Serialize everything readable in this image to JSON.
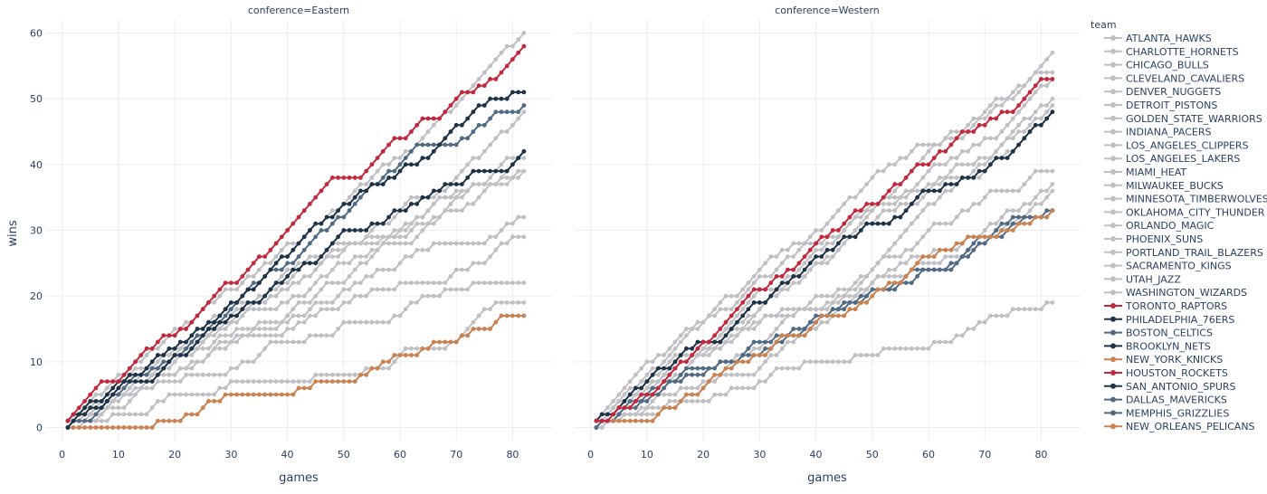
{
  "colors": {
    "gray": "#c0c0c4",
    "red": "#c2283e",
    "navy": "#1f3347",
    "slate": "#516b84",
    "orange": "#c98252",
    "grid": "#ebedf0",
    "text": "#2a3f5f"
  },
  "chart_data": {
    "type": "line",
    "xlabel": "games",
    "ylabel": "wins",
    "xlim": [
      -3,
      87
    ],
    "ylim": [
      -2,
      62
    ],
    "xticks": [
      0,
      10,
      20,
      30,
      40,
      50,
      60,
      70,
      80
    ],
    "yticks": [
      0,
      10,
      20,
      30,
      40,
      50,
      60
    ],
    "grid": true,
    "legend_title": "team",
    "legend_position": "right",
    "facets": [
      {
        "label": "conference=Eastern",
        "series": [
          {
            "name": "MILWAUKEE_BUCKS",
            "color": "gray",
            "final": [
              82,
              60
            ]
          },
          {
            "name": "INDIANA_PACERS",
            "color": "gray",
            "final": [
              82,
              48
            ]
          },
          {
            "name": "ORLANDO_MAGIC",
            "color": "gray",
            "final": [
              82,
              42
            ]
          },
          {
            "name": "DETROIT_PISTONS",
            "color": "gray",
            "final": [
              82,
              41
            ]
          },
          {
            "name": "MIAMI_HEAT",
            "color": "gray",
            "final": [
              82,
              39
            ]
          },
          {
            "name": "CHARLOTTE_HORNETS",
            "color": "gray",
            "final": [
              82,
              39
            ]
          },
          {
            "name": "WASHINGTON_WIZARDS",
            "color": "gray",
            "final": [
              82,
              32
            ]
          },
          {
            "name": "ATLANTA_HAWKS",
            "color": "gray",
            "final": [
              82,
              29
            ]
          },
          {
            "name": "CHICAGO_BULLS",
            "color": "gray",
            "final": [
              82,
              22
            ]
          },
          {
            "name": "CLEVELAND_CAVALIERS",
            "color": "gray",
            "final": [
              82,
              19
            ]
          },
          {
            "name": "BOSTON_CELTICS",
            "color": "slate",
            "final": [
              82,
              49
            ]
          },
          {
            "name": "PHILADELPHIA_76ERS",
            "color": "navy",
            "final": [
              82,
              51
            ]
          },
          {
            "name": "BROOKLYN_NETS",
            "color": "navy",
            "final": [
              82,
              42
            ]
          },
          {
            "name": "NEW_YORK_KNICKS",
            "color": "orange",
            "final": [
              82,
              17
            ]
          },
          {
            "name": "TORONTO_RAPTORS",
            "color": "red",
            "final": [
              82,
              58
            ]
          }
        ]
      },
      {
        "label": "conference=Western",
        "series": [
          {
            "name": "GOLDEN_STATE_WARRIORS",
            "color": "gray",
            "final": [
              82,
              57
            ]
          },
          {
            "name": "DENVER_NUGGETS",
            "color": "gray",
            "final": [
              82,
              54
            ]
          },
          {
            "name": "PORTLAND_TRAIL_BLAZERS",
            "color": "gray",
            "final": [
              82,
              53
            ]
          },
          {
            "name": "UTAH_JAZZ",
            "color": "gray",
            "final": [
              82,
              50
            ]
          },
          {
            "name": "OKLAHOMA_CITY_THUNDER",
            "color": "gray",
            "final": [
              82,
              49
            ]
          },
          {
            "name": "LOS_ANGELES_CLIPPERS",
            "color": "gray",
            "final": [
              82,
              48
            ]
          },
          {
            "name": "SACRAMENTO_KINGS",
            "color": "gray",
            "final": [
              82,
              39
            ]
          },
          {
            "name": "LOS_ANGELES_LAKERS",
            "color": "gray",
            "final": [
              82,
              37
            ]
          },
          {
            "name": "MINNESOTA_TIMBERWOLVES",
            "color": "gray",
            "final": [
              82,
              36
            ]
          },
          {
            "name": "PHOENIX_SUNS",
            "color": "gray",
            "final": [
              82,
              19
            ]
          },
          {
            "name": "DALLAS_MAVERICKS",
            "color": "slate",
            "final": [
              82,
              33
            ]
          },
          {
            "name": "MEMPHIS_GRIZZLIES",
            "color": "slate",
            "final": [
              82,
              33
            ]
          },
          {
            "name": "SAN_ANTONIO_SPURS",
            "color": "navy",
            "final": [
              82,
              48
            ]
          },
          {
            "name": "NEW_ORLEANS_PELICANS",
            "color": "orange",
            "final": [
              82,
              33
            ]
          },
          {
            "name": "HOUSTON_ROCKETS",
            "color": "red",
            "final": [
              82,
              53
            ]
          }
        ]
      }
    ]
  },
  "legend": {
    "title": "team",
    "items": [
      {
        "label": "ATLANTA_HAWKS",
        "color": "gray"
      },
      {
        "label": "CHARLOTTE_HORNETS",
        "color": "gray"
      },
      {
        "label": "CHICAGO_BULLS",
        "color": "gray"
      },
      {
        "label": "CLEVELAND_CAVALIERS",
        "color": "gray"
      },
      {
        "label": "DENVER_NUGGETS",
        "color": "gray"
      },
      {
        "label": "DETROIT_PISTONS",
        "color": "gray"
      },
      {
        "label": "GOLDEN_STATE_WARRIORS",
        "color": "gray"
      },
      {
        "label": "INDIANA_PACERS",
        "color": "gray"
      },
      {
        "label": "LOS_ANGELES_CLIPPERS",
        "color": "gray"
      },
      {
        "label": "LOS_ANGELES_LAKERS",
        "color": "gray"
      },
      {
        "label": "MIAMI_HEAT",
        "color": "gray"
      },
      {
        "label": "MILWAUKEE_BUCKS",
        "color": "gray"
      },
      {
        "label": "MINNESOTA_TIMBERWOLVES",
        "color": "gray"
      },
      {
        "label": "OKLAHOMA_CITY_THUNDER",
        "color": "gray"
      },
      {
        "label": "ORLANDO_MAGIC",
        "color": "gray"
      },
      {
        "label": "PHOENIX_SUNS",
        "color": "gray"
      },
      {
        "label": "PORTLAND_TRAIL_BLAZERS",
        "color": "gray"
      },
      {
        "label": "SACRAMENTO_KINGS",
        "color": "gray"
      },
      {
        "label": "UTAH_JAZZ",
        "color": "gray"
      },
      {
        "label": "WASHINGTON_WIZARDS",
        "color": "gray"
      },
      {
        "label": "TORONTO_RAPTORS",
        "color": "red"
      },
      {
        "label": "PHILADELPHIA_76ERS",
        "color": "navy"
      },
      {
        "label": "BOSTON_CELTICS",
        "color": "slate"
      },
      {
        "label": "BROOKLYN_NETS",
        "color": "navy"
      },
      {
        "label": "NEW_YORK_KNICKS",
        "color": "orange"
      },
      {
        "label": "HOUSTON_ROCKETS",
        "color": "red"
      },
      {
        "label": "SAN_ANTONIO_SPURS",
        "color": "navy"
      },
      {
        "label": "DALLAS_MAVERICKS",
        "color": "slate"
      },
      {
        "label": "MEMPHIS_GRIZZLIES",
        "color": "slate"
      },
      {
        "label": "NEW_ORLEANS_PELICANS",
        "color": "orange"
      }
    ]
  }
}
